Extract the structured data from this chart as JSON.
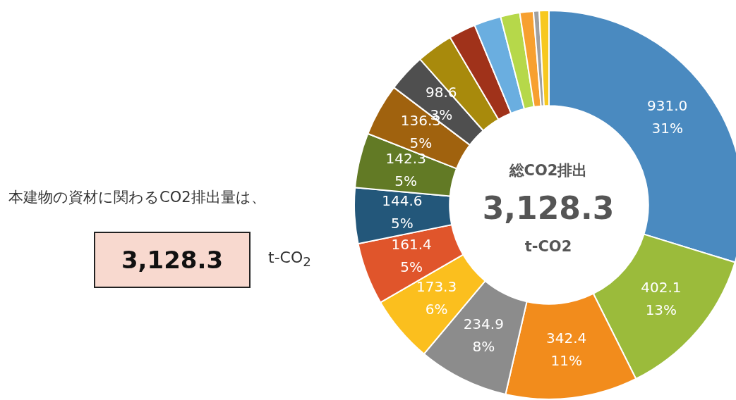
{
  "chart_data": {
    "type": "donut",
    "categories": [
      null,
      null,
      null,
      null,
      null,
      null,
      null,
      null,
      null,
      null,
      null,
      null,
      null,
      null,
      null,
      null,
      null
    ],
    "values": [
      931.0,
      402.1,
      342.4,
      234.9,
      173.3,
      161.4,
      144.6,
      142.3,
      136.3,
      98.6,
      95,
      70,
      70,
      50,
      35,
      15,
      25
    ],
    "colors": [
      "#4a8ac0",
      "#9bbb3b",
      "#f28c1c",
      "#8c8c8c",
      "#fbbf1e",
      "#e0552b",
      "#23577a",
      "#627a25",
      "#a0620e",
      "#4f4f4f",
      "#a88a0c",
      "#a0321a",
      "#6aaee0",
      "#b6d84a",
      "#f7a030",
      "#a0a0a0",
      "#f7c820"
    ],
    "value_labels": [
      "931.0\n31%",
      "402.1\n13%",
      "342.4\n11%",
      "234.9\n8%",
      "173.3\n6%",
      "161.4\n5%",
      "144.6\n5%",
      "142.3\n5%",
      "136.3\n5%",
      "98.6\n3%",
      null,
      null,
      null,
      null,
      null,
      null,
      null
    ],
    "annotations": [
      "本建物の資材に関わるCO2排出量は、",
      "3,128.3",
      "t-CO$_{2}$",
      "総CO2排出",
      "3,128.3",
      "t-CO2"
    ],
    "legend": false
  }
}
